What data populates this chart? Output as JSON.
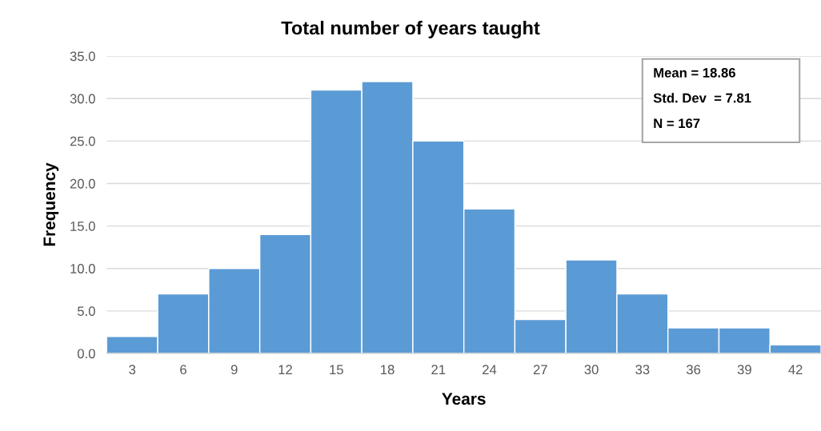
{
  "chart_data": {
    "type": "histogram",
    "title": "Total number of years taught",
    "xlabel": "Years",
    "ylabel": "Frequency",
    "bins": [
      1.5,
      4.5,
      7.5,
      10.5,
      13.5,
      16.5,
      19.5,
      22.5,
      25.5,
      28.5,
      31.5,
      34.5,
      37.5,
      40.5,
      43.5
    ],
    "values": [
      2,
      7,
      10,
      14,
      31,
      32,
      25,
      17,
      4,
      11,
      7,
      3,
      3,
      1
    ],
    "color": "#5b9bd5",
    "xlim": [
      1.5,
      43.5
    ],
    "xticks": [
      3,
      6,
      9,
      12,
      15,
      18,
      21,
      24,
      27,
      30,
      33,
      36,
      39,
      42
    ],
    "ylim": [
      0,
      35
    ],
    "yticks": [
      {
        "value": 0,
        "label": "0.0"
      },
      {
        "value": 5,
        "label": "5.0"
      },
      {
        "value": 10,
        "label": "10.0"
      },
      {
        "value": 15,
        "label": "15.0"
      },
      {
        "value": 20,
        "label": "20.0"
      },
      {
        "value": 25,
        "label": "25.0"
      },
      {
        "value": 30,
        "label": "30.0"
      },
      {
        "value": 35,
        "label": "35.0"
      }
    ],
    "grid": "y",
    "annotations": [
      "Mean = 18.86",
      "Std. Dev  = 7.81",
      "N = 167"
    ]
  }
}
